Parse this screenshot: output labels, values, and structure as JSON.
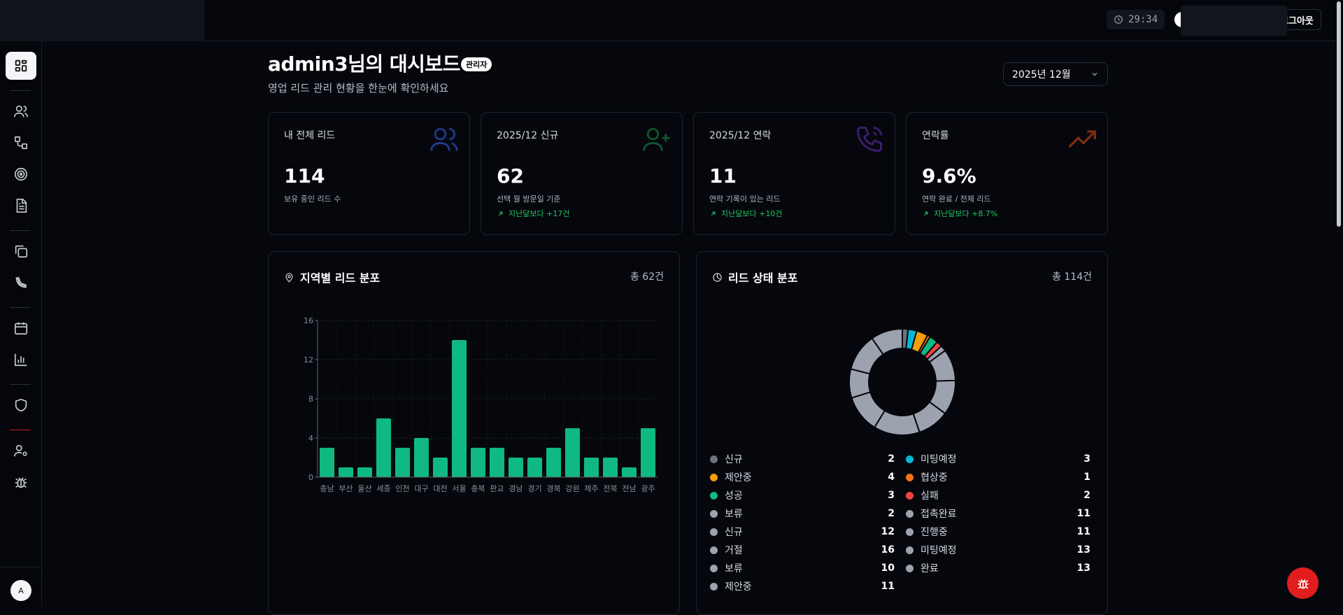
{
  "header": {
    "timer": "29:34",
    "logout_label": "로그아웃"
  },
  "sidebar": {
    "items": [
      {
        "icon": "dashboard-icon",
        "active": true
      },
      {
        "icon": "users-icon"
      },
      {
        "icon": "workflow-icon"
      },
      {
        "icon": "target-icon"
      },
      {
        "icon": "document-icon"
      },
      {
        "icon": "copy-icon"
      },
      {
        "icon": "phone-off-icon"
      },
      {
        "icon": "calendar-icon"
      },
      {
        "icon": "bar-chart-icon"
      },
      {
        "icon": "shield-icon"
      },
      {
        "icon": "user-settings-icon"
      },
      {
        "icon": "bug-icon"
      }
    ],
    "avatar": "A"
  },
  "page": {
    "title": "admin3님의 대시보드",
    "role_badge": "관리자",
    "subtitle": "영업 리드 관리 현황을 한눈에 확인하세요",
    "month": "2025년 12월"
  },
  "cards": [
    {
      "label": "내 전체 리드",
      "value": "114",
      "desc": "보유 중인 리드 수",
      "delta": "",
      "icon": "users-icon",
      "icon_color": "#1e3a8a"
    },
    {
      "label": "2025/12 신규",
      "value": "62",
      "desc": "선택 월 방문일 기준",
      "delta": "지난달보다 +17건",
      "icon": "user-plus-icon",
      "icon_color": "#14532d"
    },
    {
      "label": "2025/12 연락",
      "value": "11",
      "desc": "연락 기록이 있는 리드",
      "delta": "지난달보다 +10건",
      "icon": "phone-call-icon",
      "icon_color": "#3b1d6e"
    },
    {
      "label": "연락률",
      "value": "9.6%",
      "desc": "연락 완료 / 전체 리드",
      "delta": "지난달보다 +8.7%",
      "icon": "trending-up-icon",
      "icon_color": "#7c2d12"
    }
  ],
  "region_panel": {
    "title": "지역별 리드 분포",
    "total": "총 62건"
  },
  "status_panel": {
    "title": "리드 상태 분포",
    "total": "총 114건",
    "legend": [
      {
        "label": "신규",
        "value": "2",
        "color": "#6b7280"
      },
      {
        "label": "미팅예정",
        "value": "3",
        "color": "#06b6d4"
      },
      {
        "label": "제안중",
        "value": "4",
        "color": "#f59e0b"
      },
      {
        "label": "협상중",
        "value": "1",
        "color": "#f97316"
      },
      {
        "label": "성공",
        "value": "3",
        "color": "#10b981"
      },
      {
        "label": "실패",
        "value": "2",
        "color": "#ef4444"
      },
      {
        "label": "보류",
        "value": "2",
        "color": "#9ca3af"
      },
      {
        "label": "접촉완료",
        "value": "11",
        "color": "#9ca3af"
      },
      {
        "label": "신규",
        "value": "12",
        "color": "#9ca3af"
      },
      {
        "label": "진행중",
        "value": "11",
        "color": "#9ca3af"
      },
      {
        "label": "거절",
        "value": "16",
        "color": "#9ca3af"
      },
      {
        "label": "미팅예정",
        "value": "13",
        "color": "#9ca3af"
      },
      {
        "label": "보류",
        "value": "10",
        "color": "#9ca3af"
      },
      {
        "label": "완료",
        "value": "13",
        "color": "#9ca3af"
      },
      {
        "label": "제안중",
        "value": "11",
        "color": "#9ca3af"
      }
    ]
  },
  "chart_data": [
    {
      "type": "bar",
      "categories": [
        "충남",
        "부산",
        "울산",
        "세종",
        "인천",
        "대구",
        "대전",
        "서울",
        "충북",
        "판교",
        "경남",
        "경기",
        "경북",
        "강원",
        "제주",
        "전북",
        "전남",
        "광주"
      ],
      "values": [
        3,
        1,
        1,
        6,
        3,
        4,
        2,
        14,
        3,
        3,
        2,
        2,
        3,
        5,
        2,
        2,
        1,
        5
      ],
      "ylim": [
        0,
        16
      ],
      "yticks": [
        0,
        4,
        8,
        12,
        16
      ],
      "grid": true,
      "color": "#10b981"
    },
    {
      "type": "pie",
      "donut": true,
      "labels": [
        "신규",
        "미팅예정",
        "제안중",
        "협상중",
        "성공",
        "실패",
        "보류",
        "접촉완료",
        "신규",
        "진행중",
        "거절",
        "미팅예정",
        "보류",
        "완료",
        "제안중"
      ],
      "values": [
        2,
        3,
        4,
        1,
        3,
        2,
        2,
        11,
        12,
        11,
        16,
        13,
        10,
        13,
        11
      ],
      "colors": [
        "#6b7280",
        "#06b6d4",
        "#f59e0b",
        "#f97316",
        "#10b981",
        "#ef4444",
        "#9ca3af",
        "#9ca3af",
        "#9ca3af",
        "#9ca3af",
        "#9ca3af",
        "#9ca3af",
        "#9ca3af",
        "#9ca3af",
        "#9ca3af"
      ]
    }
  ],
  "fab_icon": "bug-icon"
}
